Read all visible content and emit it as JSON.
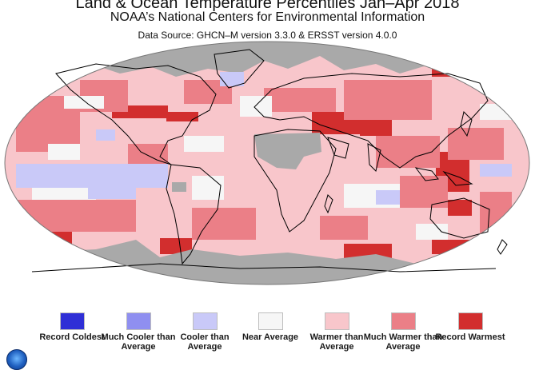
{
  "header": {
    "title": "Land & Ocean Temperature Percentiles Jan–Apr 2018",
    "subtitle": "NOAA’s National Centers for Environmental Information",
    "source": "Data Source: GHCN–M version 3.3.0 & ERSST version 4.0.0"
  },
  "colors": {
    "record_coldest": "#2f2fd6",
    "much_cooler": "#8f8ff0",
    "cooler": "#c9c9f8",
    "near_average": "#f6f6f6",
    "warmer": "#f8c6cb",
    "much_warmer": "#eb7f87",
    "record_warmest": "#d22e2e",
    "no_data": "#a9a9a9",
    "coastline": "#000000"
  },
  "legend": [
    {
      "label": "Record Coldest",
      "color": "#2f2fd6"
    },
    {
      "label": "Much Cooler than Average",
      "color": "#8f8ff0"
    },
    {
      "label": "Cooler than Average",
      "color": "#c9c9f8"
    },
    {
      "label": "Near Average",
      "color": "#f6f6f6"
    },
    {
      "label": "Warmer than Average",
      "color": "#f8c6cb"
    },
    {
      "label": "Much Warmer than Average",
      "color": "#eb7f87"
    },
    {
      "label": "Record Warmest",
      "color": "#d22e2e"
    }
  ],
  "map": {
    "projection": "robinson",
    "regions_no_data": [
      "Antarctica",
      "Arctic Ocean",
      "Sahara"
    ],
    "logo_icon": "noaa-logo-icon"
  }
}
